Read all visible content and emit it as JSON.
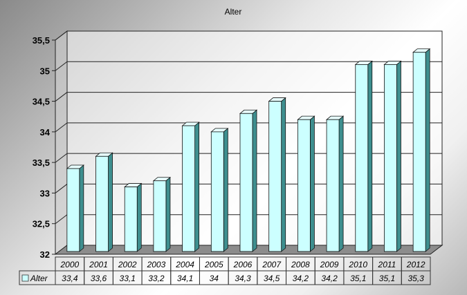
{
  "chart_data": {
    "type": "bar",
    "title": "Alter",
    "categories": [
      "2000",
      "2001",
      "2002",
      "2003",
      "2004",
      "2005",
      "2006",
      "2007",
      "2008",
      "2009",
      "2010",
      "2011",
      "2012"
    ],
    "series": [
      {
        "name": "Alter",
        "values": [
          33.4,
          33.6,
          33.1,
          33.2,
          34.1,
          34.0,
          34.3,
          34.5,
          34.2,
          34.2,
          35.1,
          35.1,
          35.3
        ],
        "value_labels": [
          "33,4",
          "33,6",
          "33,1",
          "33,2",
          "34,1",
          "34",
          "34,3",
          "34,5",
          "34,2",
          "34,2",
          "35,1",
          "35,1",
          "35,3"
        ],
        "color": "#ccffff"
      }
    ],
    "ylim": [
      32,
      35.5
    ],
    "yticks": [
      32,
      32.5,
      33,
      33.5,
      34,
      34.5,
      35,
      35.5
    ],
    "ytick_labels": [
      "32",
      "32,5",
      "33",
      "33,5",
      "34",
      "34,5",
      "35",
      "35,5"
    ],
    "grid": true,
    "legend": "data-table",
    "style": "3d"
  }
}
